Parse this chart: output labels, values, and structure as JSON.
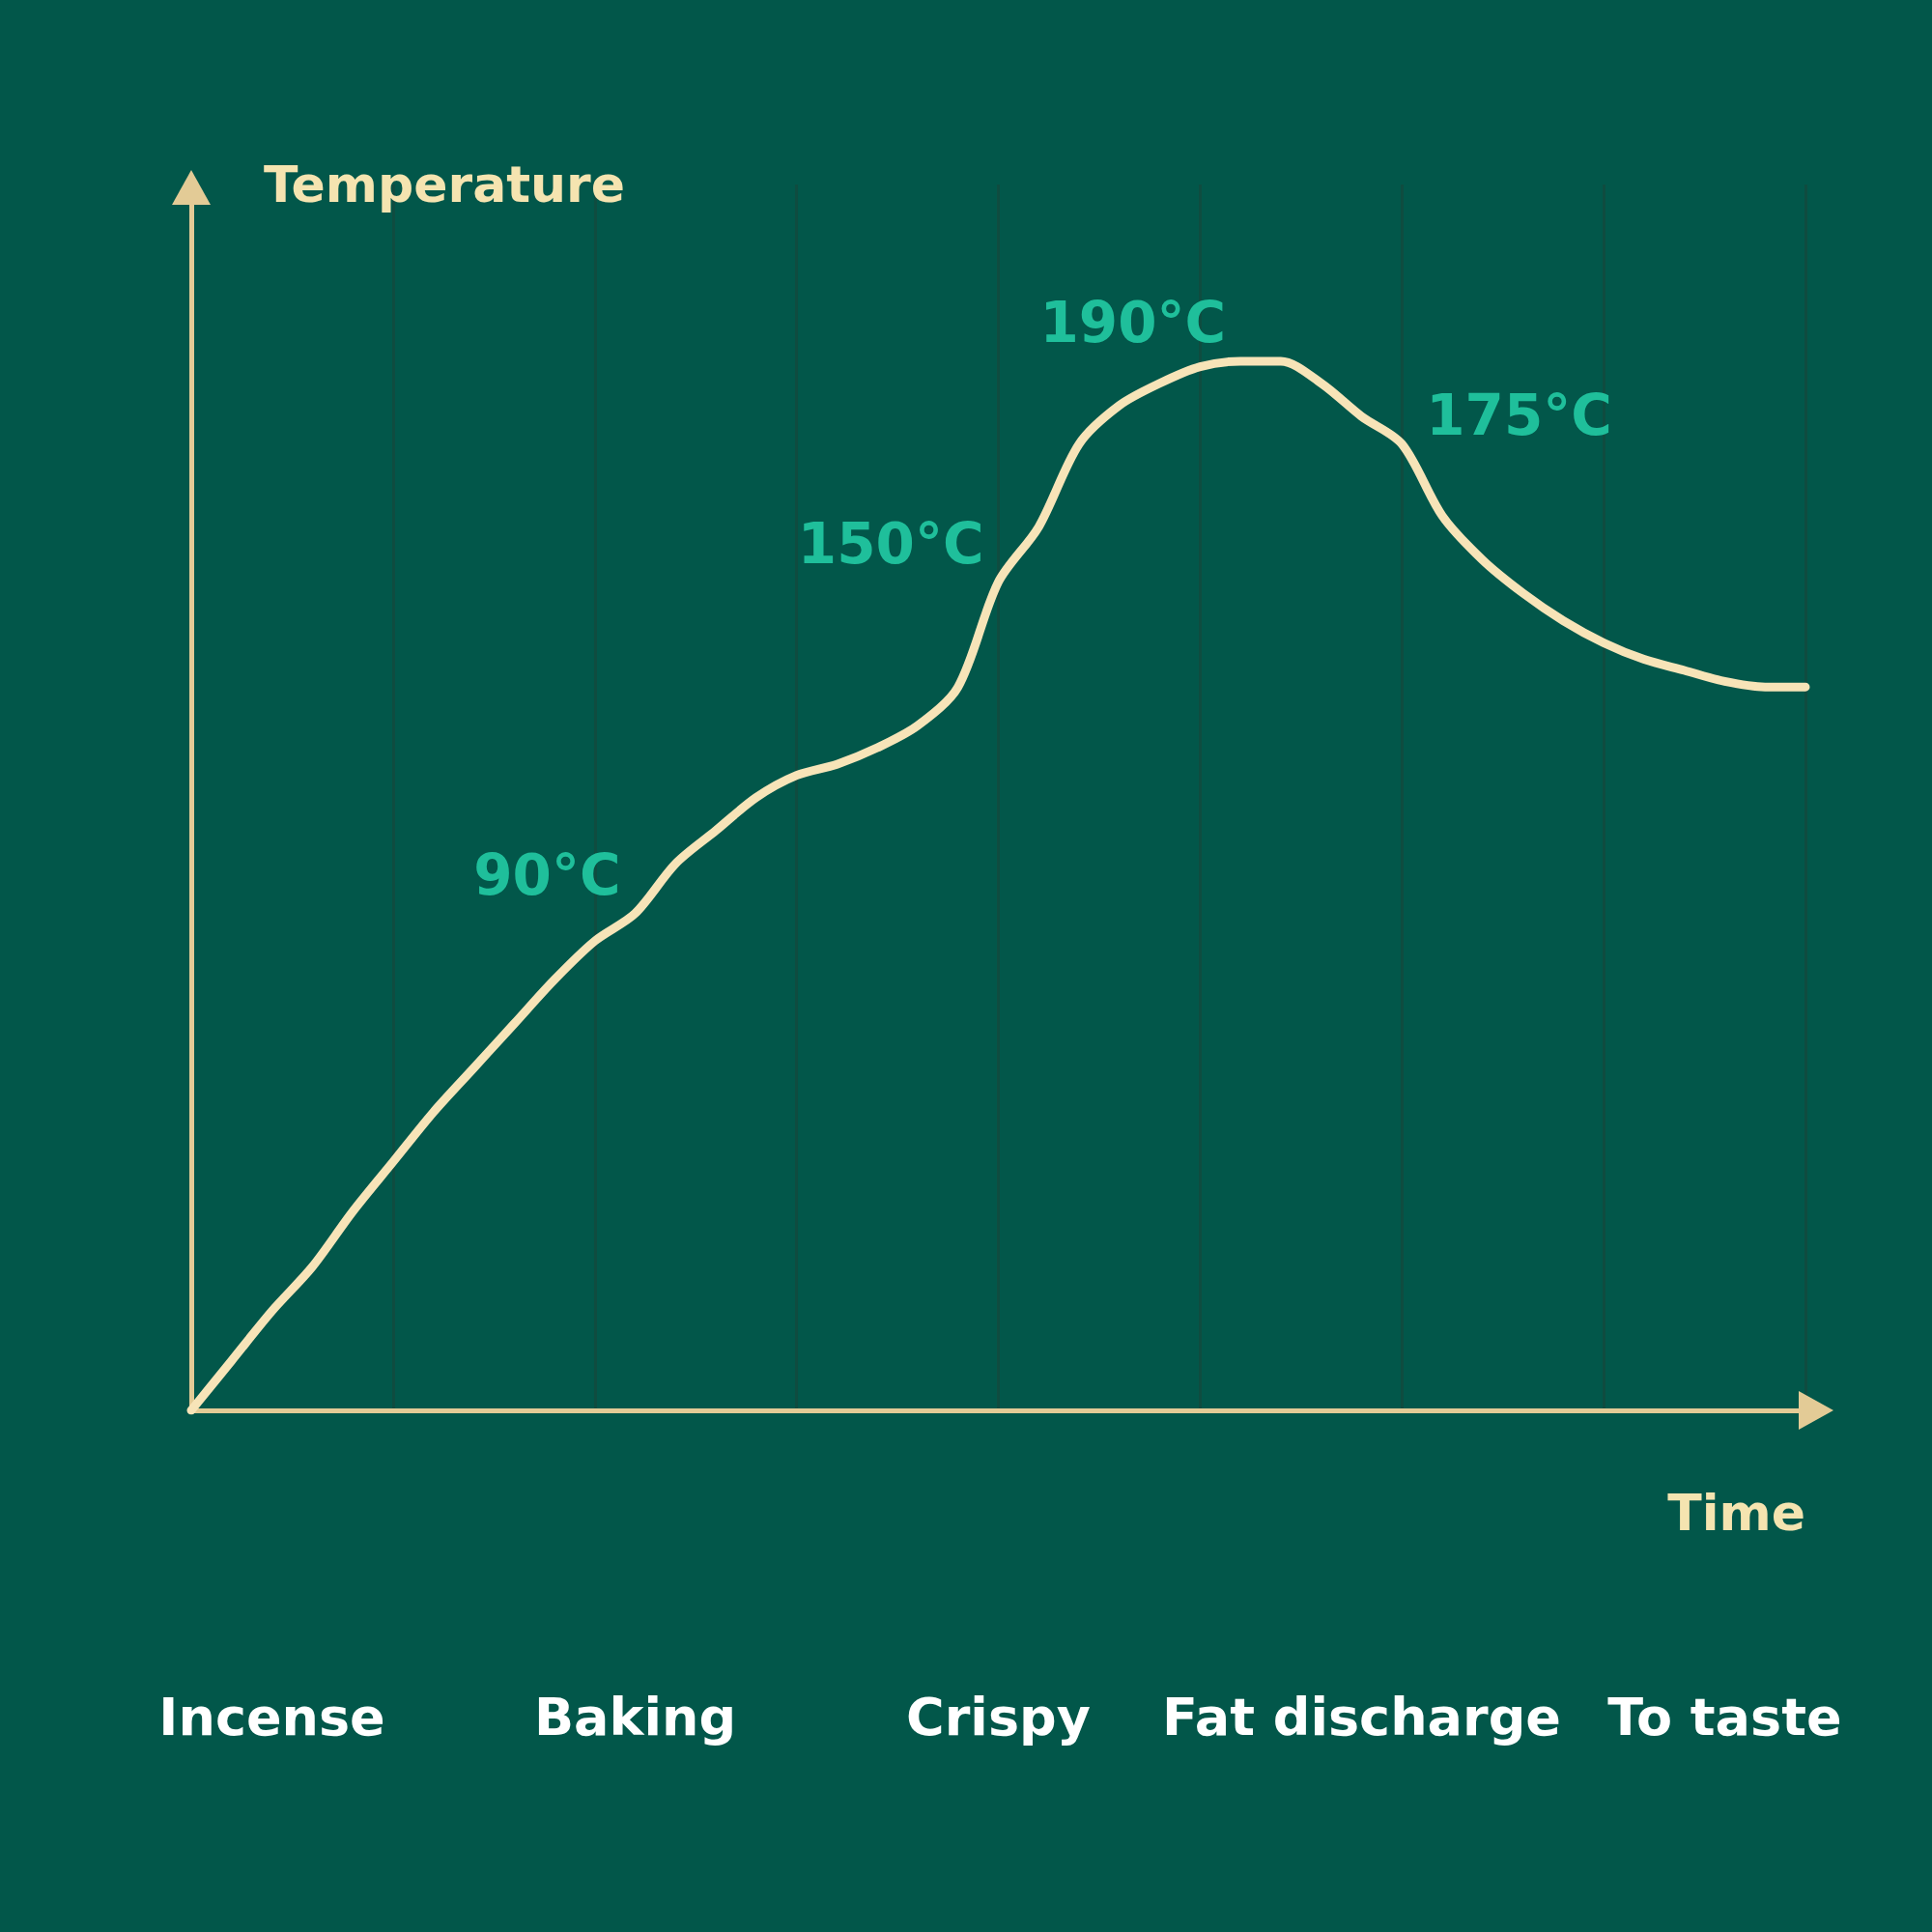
{
  "chart_data": {
    "type": "line",
    "xlabel": "Time",
    "ylabel": "Temperature",
    "color": "#f7e4b8",
    "grid": "x",
    "marker": "none",
    "tick_labels": "x",
    "ylim": [
      0,
      222
    ],
    "categories": [
      null,
      null,
      "Incense",
      null,
      null,
      null,
      null,
      null,
      null,
      null,
      null,
      "Baking",
      null,
      null,
      null,
      null,
      null,
      null,
      null,
      null,
      "Crispy",
      null,
      null,
      null,
      null,
      null,
      null,
      null,
      null,
      "Fat discharge",
      null,
      null,
      null,
      null,
      null,
      null,
      null,
      null,
      "To taste",
      null,
      null
    ],
    "values": [
      0,
      9,
      18,
      26,
      36,
      45,
      54,
      62,
      70,
      78,
      85,
      90,
      99,
      105,
      111,
      115,
      117,
      120,
      124,
      131,
      150,
      160,
      175,
      182,
      186,
      189,
      190,
      190,
      186,
      180,
      175,
      162,
      154,
      148,
      143,
      139,
      136,
      134,
      132,
      131,
      131
    ],
    "value_labels": [
      null,
      null,
      null,
      null,
      null,
      null,
      null,
      null,
      null,
      null,
      null,
      "90°C",
      null,
      null,
      null,
      null,
      null,
      null,
      null,
      null,
      "150°C",
      null,
      null,
      null,
      null,
      null,
      "190°C",
      null,
      null,
      null,
      "175°C",
      null,
      null,
      null,
      null,
      null,
      null,
      null,
      null,
      null,
      null
    ]
  }
}
